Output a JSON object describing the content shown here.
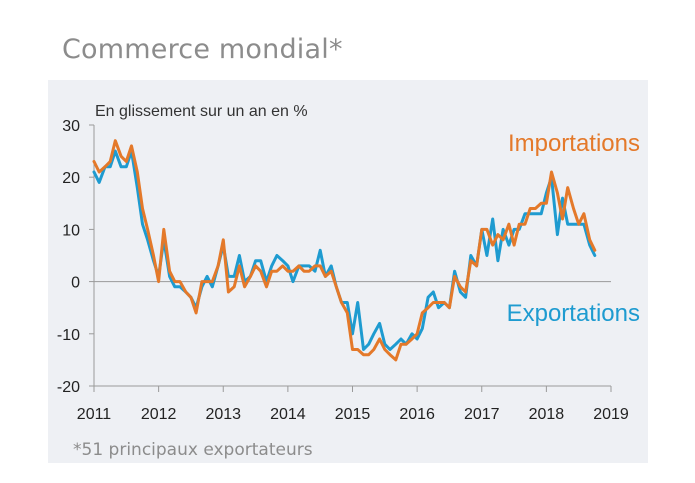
{
  "header": {
    "title": "Commerce mondial*"
  },
  "footnote": "*51 principaux exportateurs",
  "chart_data": {
    "type": "line",
    "title": "Commerce mondial*",
    "subtitle": "En glissement sur un an en %",
    "xlabel": "",
    "ylabel": "",
    "xlim": [
      2011,
      2019
    ],
    "ylim": [
      -20,
      30
    ],
    "yticks": [
      30,
      20,
      10,
      0,
      -10,
      -20
    ],
    "xticks": [
      "2011",
      "2012",
      "2013",
      "2014",
      "2015",
      "2016",
      "2017",
      "2018",
      "2019"
    ],
    "grid": false,
    "legend": "inline labels",
    "series": [
      {
        "name": "Importations",
        "color": "#e4792a",
        "points": [
          [
            2011.0,
            23
          ],
          [
            2011.08,
            21
          ],
          [
            2011.17,
            22
          ],
          [
            2011.25,
            23
          ],
          [
            2011.33,
            27
          ],
          [
            2011.42,
            24
          ],
          [
            2011.5,
            23
          ],
          [
            2011.58,
            26
          ],
          [
            2011.67,
            21
          ],
          [
            2011.75,
            14
          ],
          [
            2011.83,
            10
          ],
          [
            2011.92,
            5
          ],
          [
            2012.0,
            0
          ],
          [
            2012.08,
            10
          ],
          [
            2012.17,
            2
          ],
          [
            2012.25,
            0
          ],
          [
            2012.33,
            0
          ],
          [
            2012.42,
            -2
          ],
          [
            2012.5,
            -3
          ],
          [
            2012.58,
            -6
          ],
          [
            2012.67,
            0
          ],
          [
            2012.75,
            0
          ],
          [
            2012.83,
            0
          ],
          [
            2012.92,
            3
          ],
          [
            2013.0,
            8
          ],
          [
            2013.08,
            -2
          ],
          [
            2013.17,
            -1
          ],
          [
            2013.25,
            3
          ],
          [
            2013.33,
            -1
          ],
          [
            2013.42,
            1
          ],
          [
            2013.5,
            3
          ],
          [
            2013.58,
            2
          ],
          [
            2013.67,
            -1
          ],
          [
            2013.75,
            2
          ],
          [
            2013.83,
            2
          ],
          [
            2013.92,
            3
          ],
          [
            2014.0,
            2
          ],
          [
            2014.08,
            2
          ],
          [
            2014.17,
            3
          ],
          [
            2014.25,
            2
          ],
          [
            2014.33,
            2
          ],
          [
            2014.42,
            3
          ],
          [
            2014.5,
            3
          ],
          [
            2014.58,
            1
          ],
          [
            2014.67,
            2
          ],
          [
            2014.75,
            -1
          ],
          [
            2014.83,
            -4
          ],
          [
            2014.92,
            -6
          ],
          [
            2015.0,
            -13
          ],
          [
            2015.08,
            -13
          ],
          [
            2015.17,
            -14
          ],
          [
            2015.25,
            -14
          ],
          [
            2015.33,
            -13
          ],
          [
            2015.42,
            -11
          ],
          [
            2015.5,
            -13
          ],
          [
            2015.58,
            -14
          ],
          [
            2015.67,
            -15
          ],
          [
            2015.75,
            -12
          ],
          [
            2015.83,
            -12
          ],
          [
            2015.92,
            -11
          ],
          [
            2016.0,
            -10
          ],
          [
            2016.08,
            -6
          ],
          [
            2016.17,
            -5
          ],
          [
            2016.25,
            -4
          ],
          [
            2016.33,
            -4
          ],
          [
            2016.42,
            -4
          ],
          [
            2016.5,
            -5
          ],
          [
            2016.58,
            1
          ],
          [
            2016.67,
            -1
          ],
          [
            2016.75,
            -2
          ],
          [
            2016.83,
            4
          ],
          [
            2016.92,
            3
          ],
          [
            2017.0,
            10
          ],
          [
            2017.08,
            10
          ],
          [
            2017.17,
            7
          ],
          [
            2017.25,
            9
          ],
          [
            2017.33,
            8
          ],
          [
            2017.42,
            11
          ],
          [
            2017.5,
            7
          ],
          [
            2017.58,
            11
          ],
          [
            2017.67,
            11
          ],
          [
            2017.75,
            14
          ],
          [
            2017.83,
            14
          ],
          [
            2017.92,
            15
          ],
          [
            2018.0,
            15
          ],
          [
            2018.08,
            21
          ],
          [
            2018.17,
            17
          ],
          [
            2018.25,
            12
          ],
          [
            2018.33,
            18
          ],
          [
            2018.42,
            14
          ],
          [
            2018.5,
            11
          ],
          [
            2018.58,
            13
          ],
          [
            2018.67,
            8
          ],
          [
            2018.75,
            6
          ]
        ]
      },
      {
        "name": "Exportations",
        "color": "#1e9bd0",
        "points": [
          [
            2011.0,
            21
          ],
          [
            2011.08,
            19
          ],
          [
            2011.17,
            22
          ],
          [
            2011.25,
            22
          ],
          [
            2011.33,
            25
          ],
          [
            2011.42,
            22
          ],
          [
            2011.5,
            22
          ],
          [
            2011.58,
            25
          ],
          [
            2011.67,
            18
          ],
          [
            2011.75,
            11
          ],
          [
            2011.83,
            8
          ],
          [
            2011.92,
            4
          ],
          [
            2012.0,
            1
          ],
          [
            2012.08,
            8
          ],
          [
            2012.17,
            1
          ],
          [
            2012.25,
            -1
          ],
          [
            2012.33,
            -1
          ],
          [
            2012.42,
            -2
          ],
          [
            2012.5,
            -3
          ],
          [
            2012.58,
            -5
          ],
          [
            2012.67,
            -1
          ],
          [
            2012.75,
            1
          ],
          [
            2012.83,
            -1
          ],
          [
            2012.92,
            3
          ],
          [
            2013.0,
            7
          ],
          [
            2013.08,
            1
          ],
          [
            2013.17,
            1
          ],
          [
            2013.25,
            5
          ],
          [
            2013.33,
            0
          ],
          [
            2013.42,
            1
          ],
          [
            2013.5,
            4
          ],
          [
            2013.58,
            4
          ],
          [
            2013.67,
            0
          ],
          [
            2013.75,
            3
          ],
          [
            2013.83,
            5
          ],
          [
            2013.92,
            4
          ],
          [
            2014.0,
            3
          ],
          [
            2014.08,
            0
          ],
          [
            2014.17,
            3
          ],
          [
            2014.25,
            3
          ],
          [
            2014.33,
            3
          ],
          [
            2014.42,
            2
          ],
          [
            2014.5,
            6
          ],
          [
            2014.58,
            1
          ],
          [
            2014.67,
            3
          ],
          [
            2014.75,
            -1
          ],
          [
            2014.83,
            -4
          ],
          [
            2014.92,
            -4
          ],
          [
            2015.0,
            -10
          ],
          [
            2015.08,
            -4
          ],
          [
            2015.17,
            -13
          ],
          [
            2015.25,
            -12
          ],
          [
            2015.33,
            -10
          ],
          [
            2015.42,
            -8
          ],
          [
            2015.5,
            -12
          ],
          [
            2015.58,
            -13
          ],
          [
            2015.67,
            -12
          ],
          [
            2015.75,
            -11
          ],
          [
            2015.83,
            -12
          ],
          [
            2015.92,
            -10
          ],
          [
            2016.0,
            -11
          ],
          [
            2016.08,
            -9
          ],
          [
            2016.17,
            -3
          ],
          [
            2016.25,
            -2
          ],
          [
            2016.33,
            -5
          ],
          [
            2016.42,
            -4
          ],
          [
            2016.5,
            -5
          ],
          [
            2016.58,
            2
          ],
          [
            2016.67,
            -2
          ],
          [
            2016.75,
            -3
          ],
          [
            2016.83,
            5
          ],
          [
            2016.92,
            3
          ],
          [
            2017.0,
            10
          ],
          [
            2017.08,
            5
          ],
          [
            2017.17,
            12
          ],
          [
            2017.25,
            4
          ],
          [
            2017.33,
            10
          ],
          [
            2017.42,
            7
          ],
          [
            2017.5,
            10
          ],
          [
            2017.58,
            10
          ],
          [
            2017.67,
            13
          ],
          [
            2017.75,
            13
          ],
          [
            2017.83,
            13
          ],
          [
            2017.92,
            13
          ],
          [
            2018.0,
            17
          ],
          [
            2018.08,
            20
          ],
          [
            2018.17,
            9
          ],
          [
            2018.25,
            16
          ],
          [
            2018.33,
            11
          ],
          [
            2018.42,
            11
          ],
          [
            2018.5,
            11
          ],
          [
            2018.58,
            11
          ],
          [
            2018.67,
            7
          ],
          [
            2018.75,
            5
          ]
        ]
      }
    ]
  }
}
